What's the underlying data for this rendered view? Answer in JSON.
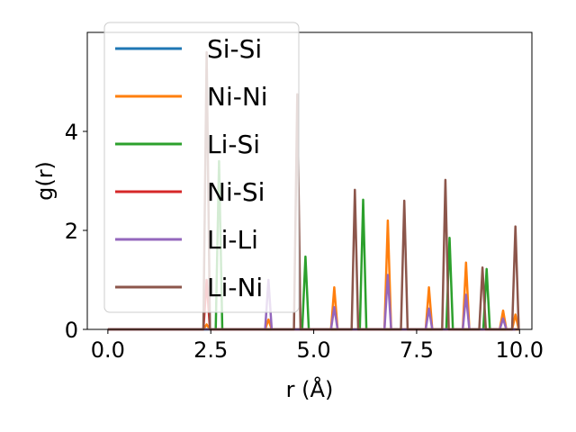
{
  "chart_data": {
    "type": "line",
    "xlabel": "r (Å)",
    "ylabel": "g(r)",
    "xlim": [
      -0.5,
      10.3
    ],
    "ylim": [
      0,
      6.0
    ],
    "xticks": [
      0.0,
      2.5,
      5.0,
      7.5,
      10.0
    ],
    "xtick_labels": [
      "0.0",
      "2.5",
      "5.0",
      "7.5",
      "10.0"
    ],
    "yticks": [
      0,
      2,
      4
    ],
    "ytick_labels": [
      "0",
      "2",
      "4"
    ],
    "grid": false,
    "legend_position": "upper-left",
    "series": [
      {
        "name": "Si-Si",
        "color": "#1f77b4",
        "peaks": []
      },
      {
        "name": "Ni-Ni",
        "color": "#ff7f0e",
        "peaks": [
          [
            2.4,
            0.1
          ],
          [
            3.9,
            0.2
          ],
          [
            5.5,
            0.85
          ],
          [
            6.8,
            2.2
          ],
          [
            7.8,
            0.85
          ],
          [
            8.7,
            1.35
          ],
          [
            9.6,
            0.38
          ],
          [
            9.9,
            0.3
          ]
        ]
      },
      {
        "name": "Li-Si",
        "color": "#2ca02c",
        "peaks": [
          [
            2.7,
            3.4
          ],
          [
            4.8,
            1.47
          ],
          [
            6.2,
            2.62
          ],
          [
            8.3,
            1.85
          ],
          [
            9.2,
            1.22
          ]
        ]
      },
      {
        "name": "Ni-Si",
        "color": "#d62728",
        "peaks": [
          [
            2.4,
            1.0
          ]
        ]
      },
      {
        "name": "Li-Li",
        "color": "#9467bd",
        "peaks": [
          [
            3.9,
            1.0
          ],
          [
            5.5,
            0.45
          ],
          [
            6.8,
            1.1
          ],
          [
            7.8,
            0.42
          ],
          [
            8.7,
            0.7
          ],
          [
            9.6,
            0.22
          ]
        ]
      },
      {
        "name": "Li-Ni",
        "color": "#8c564b",
        "peaks": [
          [
            2.4,
            5.6
          ],
          [
            4.6,
            4.75
          ],
          [
            6.0,
            2.82
          ],
          [
            7.2,
            2.6
          ],
          [
            8.2,
            3.02
          ],
          [
            9.1,
            1.25
          ],
          [
            9.9,
            2.08
          ]
        ]
      }
    ]
  }
}
